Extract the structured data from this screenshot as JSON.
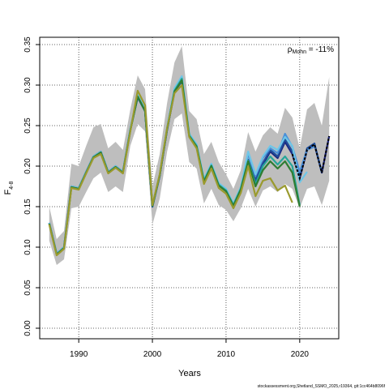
{
  "chart_data": {
    "type": "line",
    "xlabel": "Years",
    "ylabel": "F",
    "ylabel_sub": "4-8",
    "xlim": [
      1984.7,
      2025.3
    ],
    "ylim": [
      -0.013,
      0.359
    ],
    "x_ticks": [
      1990,
      2000,
      2010,
      2020
    ],
    "x_tick_labels": [
      "1990",
      "2000",
      "2010",
      "2020"
    ],
    "y_ticks": [
      0.0,
      0.05,
      0.1,
      0.15,
      0.2,
      0.25,
      0.3,
      0.35
    ],
    "y_tick_labels": [
      "0.00",
      "0.05",
      "0.10",
      "0.15",
      "0.20",
      "0.25",
      "0.30",
      "0.35"
    ],
    "grid": true,
    "annotation": {
      "prefix": "ρ",
      "subscript": "Mohn",
      "value": " = -11%"
    },
    "footer": "stockassessment.org,Shetland_SSMO_2025,r19364, git:1cc464b8096f",
    "band": {
      "x": [
        1986,
        1987,
        1988,
        1989,
        1990,
        1991,
        1992,
        1993,
        1994,
        1995,
        1996,
        1997,
        1998,
        1999,
        2000,
        2001,
        2002,
        2003,
        2004,
        2005,
        2006,
        2007,
        2008,
        2009,
        2010,
        2011,
        2012,
        2013,
        2014,
        2015,
        2016,
        2017,
        2018,
        2019,
        2020,
        2021,
        2022,
        2023,
        2024
      ],
      "lower": [
        0.108,
        0.078,
        0.085,
        0.148,
        0.15,
        0.168,
        0.185,
        0.192,
        0.168,
        0.175,
        0.168,
        0.225,
        0.252,
        0.243,
        0.128,
        0.16,
        0.218,
        0.258,
        0.265,
        0.205,
        0.197,
        0.154,
        0.172,
        0.152,
        0.146,
        0.132,
        0.148,
        0.172,
        0.15,
        0.17,
        0.175,
        0.168,
        0.178,
        0.172,
        0.148,
        0.172,
        0.175,
        0.152,
        0.182
      ],
      "upper": [
        0.15,
        0.11,
        0.12,
        0.203,
        0.2,
        0.225,
        0.248,
        0.252,
        0.222,
        0.23,
        0.22,
        0.27,
        0.312,
        0.295,
        0.175,
        0.215,
        0.278,
        0.328,
        0.348,
        0.268,
        0.258,
        0.215,
        0.23,
        0.205,
        0.19,
        0.172,
        0.195,
        0.242,
        0.218,
        0.238,
        0.248,
        0.24,
        0.272,
        0.26,
        0.222,
        0.27,
        0.278,
        0.25,
        0.31
      ]
    },
    "series": [
      {
        "color": "#1a237e",
        "x": [
          1986,
          1987,
          1988,
          1989,
          1990,
          1991,
          1992,
          1993,
          1994,
          1995,
          1996,
          1997,
          1998,
          1999,
          2000,
          2001,
          2002,
          2003,
          2004,
          2005,
          2006,
          2007,
          2008,
          2009,
          2010,
          2011,
          2012,
          2013,
          2014,
          2015,
          2016,
          2017,
          2018,
          2019,
          2020,
          2021,
          2022,
          2023,
          2024
        ],
        "y": [
          0.13,
          0.092,
          0.1,
          0.175,
          0.173,
          0.193,
          0.212,
          0.218,
          0.193,
          0.2,
          0.193,
          0.245,
          0.285,
          0.268,
          0.15,
          0.188,
          0.245,
          0.292,
          0.305,
          0.238,
          0.225,
          0.182,
          0.2,
          0.177,
          0.17,
          0.152,
          0.172,
          0.207,
          0.182,
          0.202,
          0.218,
          0.21,
          0.23,
          0.215,
          0.185,
          0.22,
          0.227,
          0.192,
          0.237
        ]
      },
      {
        "color": "#1f4e9a",
        "x": [
          1986,
          1987,
          1988,
          1989,
          1990,
          1991,
          1992,
          1993,
          1994,
          1995,
          1996,
          1997,
          1998,
          1999,
          2000,
          2001,
          2002,
          2003,
          2004,
          2005,
          2006,
          2007,
          2008,
          2009,
          2010,
          2011,
          2012,
          2013,
          2014,
          2015,
          2016,
          2017,
          2018,
          2019,
          2020,
          2021,
          2022,
          2023
        ],
        "y": [
          0.13,
          0.092,
          0.1,
          0.175,
          0.173,
          0.193,
          0.212,
          0.218,
          0.193,
          0.2,
          0.193,
          0.245,
          0.285,
          0.268,
          0.15,
          0.188,
          0.245,
          0.292,
          0.305,
          0.238,
          0.225,
          0.182,
          0.201,
          0.177,
          0.17,
          0.152,
          0.172,
          0.208,
          0.183,
          0.204,
          0.22,
          0.212,
          0.233,
          0.218,
          0.188,
          0.222,
          0.228,
          0.192
        ]
      },
      {
        "color": "#4a90d9",
        "x": [
          1986,
          1987,
          1988,
          1989,
          1990,
          1991,
          1992,
          1993,
          1994,
          1995,
          1996,
          1997,
          1998,
          1999,
          2000,
          2001,
          2002,
          2003,
          2004,
          2005,
          2006,
          2007,
          2008,
          2009,
          2010,
          2011,
          2012,
          2013,
          2014,
          2015,
          2016,
          2017,
          2018,
          2019,
          2020,
          2021,
          2022
        ],
        "y": [
          0.13,
          0.092,
          0.1,
          0.175,
          0.173,
          0.193,
          0.212,
          0.218,
          0.193,
          0.2,
          0.193,
          0.246,
          0.287,
          0.27,
          0.151,
          0.189,
          0.247,
          0.294,
          0.308,
          0.239,
          0.226,
          0.183,
          0.202,
          0.178,
          0.171,
          0.153,
          0.173,
          0.215,
          0.188,
          0.21,
          0.222,
          0.216,
          0.24,
          0.224,
          0.193,
          0.22,
          0.224
        ]
      },
      {
        "color": "#6ec6e8",
        "x": [
          1986,
          1987,
          1988,
          1989,
          1990,
          1991,
          1992,
          1993,
          1994,
          1995,
          1996,
          1997,
          1998,
          1999,
          2000,
          2001,
          2002,
          2003,
          2004,
          2005,
          2006,
          2007,
          2008,
          2009,
          2010,
          2011,
          2012,
          2013,
          2014,
          2015,
          2016,
          2017,
          2018,
          2019,
          2020,
          2021
        ],
        "y": [
          0.13,
          0.092,
          0.1,
          0.175,
          0.173,
          0.193,
          0.212,
          0.218,
          0.193,
          0.2,
          0.193,
          0.246,
          0.288,
          0.271,
          0.152,
          0.19,
          0.248,
          0.296,
          0.311,
          0.24,
          0.227,
          0.184,
          0.203,
          0.179,
          0.172,
          0.154,
          0.174,
          0.218,
          0.19,
          0.212,
          0.225,
          0.22,
          0.236,
          0.225,
          0.18,
          0.193
        ]
      },
      {
        "color": "#26a69a",
        "x": [
          1986,
          1987,
          1988,
          1989,
          1990,
          1991,
          1992,
          1993,
          1994,
          1995,
          1996,
          1997,
          1998,
          1999,
          2000,
          2001,
          2002,
          2003,
          2004,
          2005,
          2006,
          2007,
          2008,
          2009,
          2010,
          2011,
          2012,
          2013,
          2014,
          2015,
          2016,
          2017,
          2018,
          2019,
          2020
        ],
        "y": [
          0.129,
          0.091,
          0.099,
          0.174,
          0.172,
          0.192,
          0.211,
          0.217,
          0.192,
          0.199,
          0.192,
          0.244,
          0.286,
          0.268,
          0.151,
          0.189,
          0.246,
          0.293,
          0.308,
          0.238,
          0.225,
          0.182,
          0.201,
          0.177,
          0.17,
          0.152,
          0.172,
          0.207,
          0.178,
          0.2,
          0.212,
          0.202,
          0.212,
          0.2,
          0.152
        ]
      },
      {
        "color": "#2e7d32",
        "x": [
          1986,
          1987,
          1988,
          1989,
          1990,
          1991,
          1992,
          1993,
          1994,
          1995,
          1996,
          1997,
          1998,
          1999,
          2000,
          2001,
          2002,
          2003,
          2004,
          2005,
          2006,
          2007,
          2008,
          2009,
          2010,
          2011,
          2012,
          2013,
          2014,
          2015,
          2016,
          2017,
          2018,
          2019,
          2020
        ],
        "y": [
          0.129,
          0.091,
          0.099,
          0.174,
          0.172,
          0.192,
          0.211,
          0.217,
          0.192,
          0.199,
          0.192,
          0.244,
          0.286,
          0.268,
          0.151,
          0.189,
          0.246,
          0.292,
          0.306,
          0.237,
          0.224,
          0.181,
          0.2,
          0.176,
          0.169,
          0.151,
          0.171,
          0.206,
          0.175,
          0.195,
          0.206,
          0.197,
          0.206,
          0.192,
          0.15
        ]
      },
      {
        "color": "#9a9a2e",
        "x": [
          1986,
          1987,
          1988,
          1989,
          1990,
          1991,
          1992,
          1993,
          1994,
          1995,
          1996,
          1997,
          1998,
          1999,
          2000,
          2001,
          2002,
          2003,
          2004,
          2005,
          2006,
          2007,
          2008,
          2009,
          2010,
          2011,
          2012,
          2013,
          2014,
          2015,
          2016,
          2017,
          2018,
          2019
        ],
        "y": [
          0.128,
          0.09,
          0.098,
          0.173,
          0.171,
          0.191,
          0.21,
          0.215,
          0.191,
          0.198,
          0.191,
          0.243,
          0.293,
          0.275,
          0.152,
          0.19,
          0.247,
          0.29,
          0.3,
          0.236,
          0.222,
          0.178,
          0.197,
          0.173,
          0.166,
          0.148,
          0.167,
          0.2,
          0.163,
          0.182,
          0.185,
          0.17,
          0.176,
          0.155
        ]
      }
    ],
    "reference_series": {
      "color": "#000000",
      "dashed": true,
      "x": [
        2019,
        2020,
        2021,
        2022,
        2023,
        2024
      ],
      "y": [
        0.215,
        0.185,
        0.22,
        0.227,
        0.192,
        0.237
      ]
    }
  }
}
